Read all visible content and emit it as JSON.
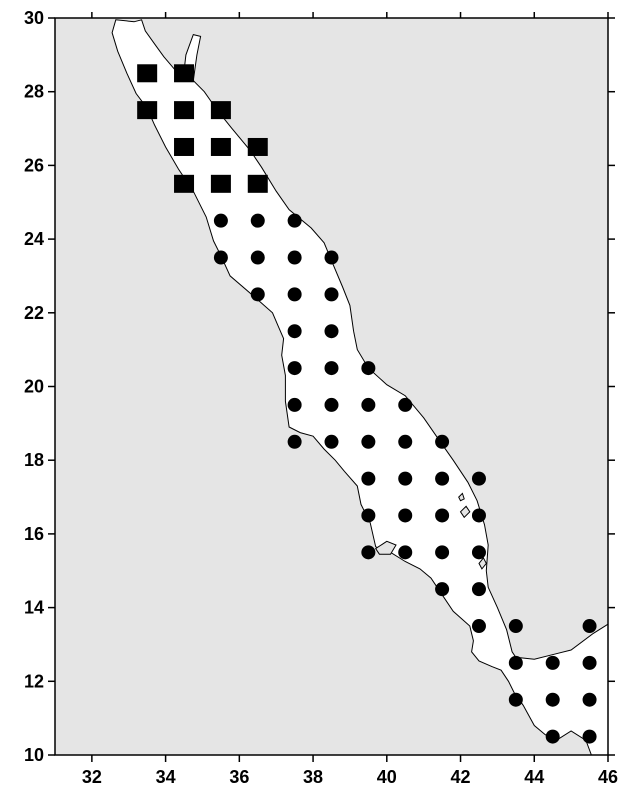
{
  "colors": {
    "land": "#e5e5e5",
    "sea": "#ffffff",
    "marker": "#000000",
    "frame": "#000000"
  },
  "chart_data": {
    "type": "scatter",
    "title": "",
    "xlabel": "",
    "ylabel": "",
    "xlim": [
      31,
      46
    ],
    "ylim": [
      10,
      30
    ],
    "grid": false,
    "x_ticks": [
      32,
      34,
      36,
      38,
      40,
      42,
      44,
      46
    ],
    "y_ticks": [
      10,
      12,
      14,
      16,
      18,
      20,
      22,
      24,
      26,
      28,
      30
    ],
    "series": [
      {
        "marker": "square",
        "points": [
          [
            33.5,
            28.5
          ],
          [
            34.5,
            28.5
          ],
          [
            33.5,
            27.5
          ],
          [
            34.5,
            27.5
          ],
          [
            35.5,
            27.5
          ],
          [
            34.5,
            26.5
          ],
          [
            35.5,
            26.5
          ],
          [
            36.5,
            26.5
          ],
          [
            34.5,
            25.5
          ],
          [
            35.5,
            25.5
          ],
          [
            36.5,
            25.5
          ]
        ]
      },
      {
        "marker": "circle",
        "points": [
          [
            35.5,
            24.5
          ],
          [
            36.5,
            24.5
          ],
          [
            37.5,
            24.5
          ],
          [
            35.5,
            23.5
          ],
          [
            36.5,
            23.5
          ],
          [
            37.5,
            23.5
          ],
          [
            38.5,
            23.5
          ],
          [
            36.5,
            22.5
          ],
          [
            37.5,
            22.5
          ],
          [
            38.5,
            22.5
          ],
          [
            37.5,
            21.5
          ],
          [
            38.5,
            21.5
          ],
          [
            37.5,
            20.5
          ],
          [
            38.5,
            20.5
          ],
          [
            39.5,
            20.5
          ],
          [
            37.5,
            19.5
          ],
          [
            38.5,
            19.5
          ],
          [
            39.5,
            19.5
          ],
          [
            40.5,
            19.5
          ],
          [
            37.5,
            18.5
          ],
          [
            38.5,
            18.5
          ],
          [
            39.5,
            18.5
          ],
          [
            40.5,
            18.5
          ],
          [
            41.5,
            18.5
          ],
          [
            39.5,
            17.5
          ],
          [
            40.5,
            17.5
          ],
          [
            41.5,
            17.5
          ],
          [
            42.5,
            17.5
          ],
          [
            39.5,
            16.5
          ],
          [
            40.5,
            16.5
          ],
          [
            41.5,
            16.5
          ],
          [
            42.5,
            16.5
          ],
          [
            39.5,
            15.5
          ],
          [
            40.5,
            15.5
          ],
          [
            41.5,
            15.5
          ],
          [
            42.5,
            15.5
          ],
          [
            41.5,
            14.5
          ],
          [
            42.5,
            14.5
          ],
          [
            42.5,
            13.5
          ],
          [
            43.5,
            13.5
          ],
          [
            45.5,
            13.5
          ],
          [
            43.5,
            12.5
          ],
          [
            44.5,
            12.5
          ],
          [
            45.5,
            12.5
          ],
          [
            43.5,
            11.5
          ],
          [
            44.5,
            11.5
          ],
          [
            45.5,
            11.5
          ],
          [
            44.5,
            10.5
          ],
          [
            45.5,
            10.5
          ]
        ]
      }
    ],
    "sea_outline": [
      [
        33.15,
        29.9
      ],
      [
        33.35,
        29.95
      ],
      [
        33.45,
        29.65
      ],
      [
        33.7,
        29.3
      ],
      [
        33.95,
        28.95
      ],
      [
        34.25,
        28.6
      ],
      [
        34.35,
        28.3
      ],
      [
        34.5,
        28.55
      ],
      [
        34.55,
        29.0
      ],
      [
        34.75,
        29.55
      ],
      [
        34.95,
        29.5
      ],
      [
        34.85,
        29.0
      ],
      [
        34.75,
        28.3
      ],
      [
        35.05,
        28.0
      ],
      [
        35.4,
        27.5
      ],
      [
        35.8,
        27.0
      ],
      [
        36.3,
        26.4
      ],
      [
        36.6,
        25.95
      ],
      [
        37.0,
        25.3
      ],
      [
        37.35,
        24.8
      ],
      [
        37.95,
        24.3
      ],
      [
        38.3,
        23.9
      ],
      [
        38.55,
        23.3
      ],
      [
        38.8,
        22.7
      ],
      [
        39.0,
        22.2
      ],
      [
        39.1,
        21.5
      ],
      [
        39.2,
        21.0
      ],
      [
        39.5,
        20.5
      ],
      [
        40.0,
        20.05
      ],
      [
        40.5,
        19.75
      ],
      [
        41.0,
        19.15
      ],
      [
        41.45,
        18.5
      ],
      [
        41.8,
        18.0
      ],
      [
        42.2,
        17.4
      ],
      [
        42.45,
        16.9
      ],
      [
        42.65,
        16.25
      ],
      [
        42.75,
        15.7
      ],
      [
        42.7,
        15.0
      ],
      [
        42.75,
        14.55
      ],
      [
        43.0,
        14.0
      ],
      [
        43.25,
        13.4
      ],
      [
        43.4,
        12.8
      ],
      [
        43.5,
        12.65
      ],
      [
        44.0,
        12.6
      ],
      [
        44.6,
        12.75
      ],
      [
        45.0,
        12.85
      ],
      [
        45.6,
        13.3
      ],
      [
        46.0,
        13.55
      ],
      [
        46.0,
        10.0
      ],
      [
        45.55,
        10.0
      ],
      [
        45.4,
        10.4
      ],
      [
        45.0,
        10.65
      ],
      [
        44.6,
        10.4
      ],
      [
        44.3,
        10.55
      ],
      [
        44.0,
        10.8
      ],
      [
        43.7,
        11.35
      ],
      [
        43.45,
        11.7
      ],
      [
        43.3,
        12.0
      ],
      [
        43.1,
        12.3
      ],
      [
        42.85,
        12.4
      ],
      [
        42.5,
        12.55
      ],
      [
        42.3,
        12.8
      ],
      [
        42.35,
        13.1
      ],
      [
        42.25,
        13.5
      ],
      [
        41.8,
        13.9
      ],
      [
        41.4,
        14.5
      ],
      [
        41.2,
        14.8
      ],
      [
        40.9,
        15.05
      ],
      [
        40.5,
        15.25
      ],
      [
        40.1,
        15.5
      ],
      [
        39.7,
        15.65
      ],
      [
        39.55,
        16.3
      ],
      [
        39.3,
        16.8
      ],
      [
        39.2,
        17.3
      ],
      [
        38.85,
        17.7
      ],
      [
        38.6,
        18.0
      ],
      [
        38.3,
        18.3
      ],
      [
        38.0,
        18.65
      ],
      [
        37.65,
        18.75
      ],
      [
        37.35,
        18.9
      ],
      [
        37.25,
        19.6
      ],
      [
        37.25,
        20.3
      ],
      [
        37.15,
        20.85
      ],
      [
        37.2,
        21.3
      ],
      [
        37.05,
        21.65
      ],
      [
        36.9,
        22.0
      ],
      [
        36.45,
        22.4
      ],
      [
        35.75,
        23.0
      ],
      [
        35.5,
        23.55
      ],
      [
        35.3,
        23.95
      ],
      [
        35.1,
        24.6
      ],
      [
        34.75,
        25.3
      ],
      [
        34.35,
        25.9
      ],
      [
        34.0,
        26.5
      ],
      [
        33.7,
        27.1
      ],
      [
        33.5,
        27.55
      ],
      [
        33.2,
        27.95
      ],
      [
        32.95,
        28.5
      ],
      [
        32.7,
        29.1
      ],
      [
        32.55,
        29.6
      ],
      [
        32.65,
        29.95
      ],
      [
        33.15,
        29.9
      ]
    ],
    "islands": [
      [
        [
          39.7,
          15.6
        ],
        [
          40.0,
          15.8
        ],
        [
          40.25,
          15.7
        ],
        [
          40.1,
          15.45
        ],
        [
          39.8,
          15.45
        ]
      ],
      [
        [
          42.0,
          16.6
        ],
        [
          42.15,
          16.75
        ],
        [
          42.25,
          16.6
        ],
        [
          42.1,
          16.45
        ]
      ],
      [
        [
          42.5,
          15.2
        ],
        [
          42.62,
          15.35
        ],
        [
          42.7,
          15.2
        ],
        [
          42.58,
          15.05
        ]
      ],
      [
        [
          41.95,
          17.0
        ],
        [
          42.05,
          17.1
        ],
        [
          42.1,
          16.95
        ],
        [
          42.0,
          16.9
        ]
      ]
    ]
  }
}
